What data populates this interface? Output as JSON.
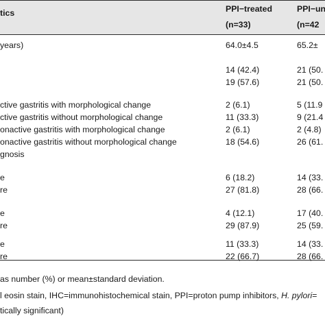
{
  "header": {
    "col1": "tics",
    "col2_line1": "PPI−treated",
    "col2_line2": "(n=33)",
    "col3_line1": "PPI−un",
    "col3_line2": "(n=42"
  },
  "rows": [
    {
      "label": "years)",
      "v1": "64.0±4.5",
      "v2": "65.2±"
    },
    {
      "label": "",
      "v1": "14 (42.4)",
      "v2": "21 (50."
    },
    {
      "label": "",
      "v1": "19 (57.6)",
      "v2": "21 (50."
    },
    {
      "label": "ctive gastritis with morphological change",
      "v1": "2 (6.1)",
      "v2": "5 (11.9"
    },
    {
      "label": "ctive gastritis without morphological change",
      "v1": "11 (33.3)",
      "v2": "9 (21.4"
    },
    {
      "label": "onactive gastritis with morphological change",
      "v1": "2 (6.1)",
      "v2": "2 (4.8)"
    },
    {
      "label": "onactive gastritis without morphological change",
      "v1": "18 (54.6)",
      "v2": "26 (61."
    },
    {
      "label": "gnosis",
      "v1": "",
      "v2": ""
    },
    {
      "label": "e",
      "v1": "6 (18.2)",
      "v2": "14 (33."
    },
    {
      "label": "re",
      "v1": "27 (81.8)",
      "v2": "28 (66."
    },
    {
      "label": "e",
      "v1": "4 (12.1)",
      "v2": "17 (40."
    },
    {
      "label": "re",
      "v1": "29 (87.9)",
      "v2": "25 (59."
    },
    {
      "label": "e",
      "v1": "11 (33.3)",
      "v2": "14 (33."
    },
    {
      "label": "re",
      "v1": "22 (66.7)",
      "v2": "28 (66."
    }
  ],
  "footnotes": {
    "line1": "as number (%) or mean±standard deviation.",
    "line2_pre": "l eosin stain, IHC=immunohistochemical stain, PPI=proton pump inhibitors, ",
    "line2_italic": "H. pylori",
    "line2_post": "=",
    "line3": "tically significant)"
  }
}
